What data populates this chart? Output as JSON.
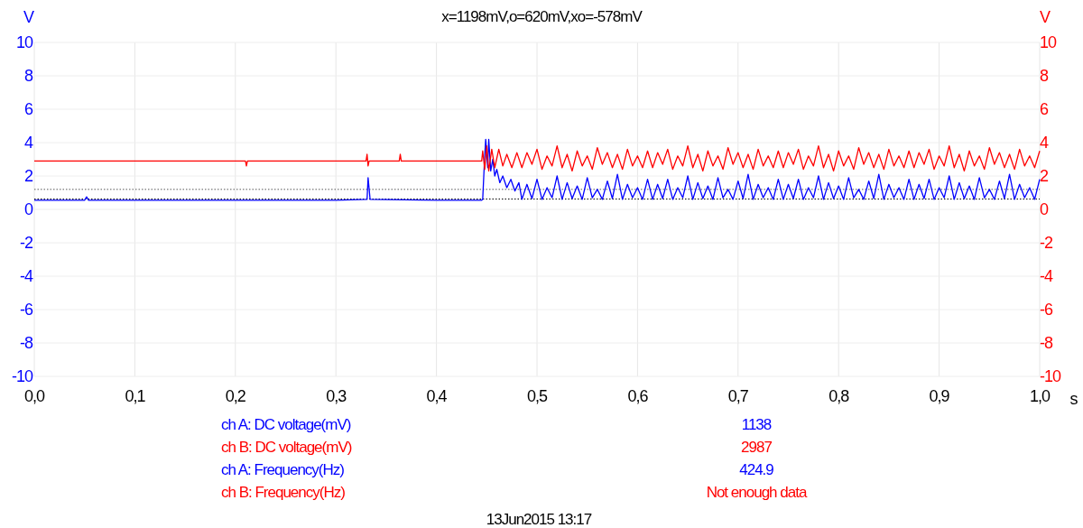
{
  "chart_data": {
    "type": "line",
    "title": "x=1198mV,o=620mV,xo=-578mV",
    "xlabel": "s",
    "ylabel": "V",
    "y2label": "V",
    "xlim": [
      0,
      1
    ],
    "xticks": [
      {
        "value": 0,
        "label": "0,0"
      },
      {
        "value": 0.1,
        "label": "0,1"
      },
      {
        "value": 0.2,
        "label": "0,2"
      },
      {
        "value": 0.3,
        "label": "0,3"
      },
      {
        "value": 0.4,
        "label": "0,4"
      },
      {
        "value": 0.5,
        "label": "0,5"
      },
      {
        "value": 0.6,
        "label": "0,6"
      },
      {
        "value": 0.7,
        "label": "0,7"
      },
      {
        "value": 0.8,
        "label": "0,8"
      },
      {
        "value": 0.9,
        "label": "0,9"
      },
      {
        "value": 1,
        "label": "1,0"
      }
    ],
    "ylim": [
      -10,
      10
    ],
    "yticks": [
      -10,
      -8,
      -6,
      -4,
      -2,
      0,
      2,
      4,
      6,
      8,
      10
    ],
    "y2lim": [
      -10,
      10
    ],
    "y2ticks": [
      -10,
      -8,
      -6,
      -4,
      -2,
      0,
      2,
      4,
      6,
      8,
      10
    ],
    "grid": true,
    "line_style": "solid",
    "marker": "none",
    "ref_lines": [
      {
        "axis": "y",
        "value": 1.198,
        "label": null,
        "color": "#555555",
        "line_style": "dotted"
      },
      {
        "axis": "y",
        "value": 0.62,
        "label": null,
        "color": "#000000",
        "line_style": "dotted"
      }
    ],
    "series": [
      {
        "color": "#0000ff",
        "x": [
          0,
          0.05,
          0.052,
          0.054,
          0.1,
          0.2,
          0.3,
          0.331,
          0.332,
          0.334,
          0.4,
          0.445,
          0.446,
          0.448,
          0.449,
          0.451,
          0.452,
          0.454,
          0.456,
          0.458,
          0.46,
          0.463,
          0.466,
          0.47,
          0.474,
          0.478,
          0.482,
          0.485,
          0.49,
          0.495,
          0.5,
          0.505,
          0.51,
          0.515,
          0.52,
          0.525,
          0.53,
          0.535,
          0.54,
          0.545,
          0.55,
          0.555,
          0.56,
          0.565,
          0.57,
          0.575,
          0.58,
          0.585,
          0.59,
          0.595,
          0.6,
          0.605,
          0.61,
          0.615,
          0.62,
          0.625,
          0.63,
          0.635,
          0.64,
          0.645,
          0.65,
          0.655,
          0.66,
          0.665,
          0.67,
          0.675,
          0.68,
          0.685,
          0.69,
          0.695,
          0.7,
          0.705,
          0.71,
          0.715,
          0.72,
          0.725,
          0.73,
          0.735,
          0.74,
          0.745,
          0.75,
          0.755,
          0.76,
          0.765,
          0.77,
          0.775,
          0.78,
          0.785,
          0.79,
          0.795,
          0.8,
          0.805,
          0.81,
          0.815,
          0.82,
          0.825,
          0.83,
          0.835,
          0.84,
          0.845,
          0.85,
          0.855,
          0.86,
          0.865,
          0.87,
          0.875,
          0.88,
          0.885,
          0.89,
          0.895,
          0.9,
          0.905,
          0.91,
          0.915,
          0.92,
          0.925,
          0.93,
          0.935,
          0.94,
          0.945,
          0.95,
          0.955,
          0.96,
          0.965,
          0.97,
          0.975,
          0.98,
          0.985,
          0.99,
          0.995,
          1.0
        ],
        "values": [
          0.55,
          0.55,
          0.75,
          0.55,
          0.55,
          0.55,
          0.55,
          0.6,
          1.9,
          0.6,
          0.55,
          0.55,
          0.6,
          3.2,
          4.2,
          2.5,
          4.2,
          2.3,
          3.0,
          2.0,
          2.4,
          1.6,
          2.0,
          1.3,
          1.8,
          1.1,
          1.6,
          0.6,
          1.5,
          0.65,
          1.8,
          0.6,
          1.3,
          0.7,
          2.0,
          0.6,
          1.6,
          0.65,
          1.4,
          0.6,
          1.9,
          0.7,
          1.2,
          0.6,
          1.7,
          0.65,
          2.1,
          0.6,
          1.5,
          0.7,
          1.3,
          0.6,
          1.8,
          0.6,
          1.5,
          0.65,
          1.8,
          0.6,
          1.3,
          0.7,
          2.0,
          0.6,
          1.6,
          0.65,
          1.4,
          0.6,
          1.9,
          0.7,
          1.2,
          0.6,
          1.7,
          0.65,
          2.1,
          0.6,
          1.5,
          0.7,
          1.3,
          0.6,
          1.8,
          0.6,
          1.5,
          0.65,
          1.8,
          0.6,
          1.3,
          0.7,
          2.0,
          0.6,
          1.6,
          0.65,
          1.4,
          0.6,
          1.9,
          0.7,
          1.2,
          0.6,
          1.7,
          0.65,
          2.1,
          0.6,
          1.5,
          0.7,
          1.3,
          0.6,
          1.8,
          0.6,
          1.5,
          0.65,
          1.8,
          0.6,
          1.3,
          0.7,
          2.0,
          0.6,
          1.6,
          0.65,
          1.4,
          0.6,
          1.9,
          0.7,
          1.2,
          0.6,
          1.7,
          0.65,
          2.1,
          0.6,
          1.5,
          0.7,
          1.3,
          0.6,
          1.8
        ]
      },
      {
        "color": "#ff0000",
        "axis": "y2",
        "x": [
          0,
          0.2,
          0.21,
          0.211,
          0.212,
          0.33,
          0.331,
          0.332,
          0.333,
          0.363,
          0.364,
          0.365,
          0.445,
          0.446,
          0.448,
          0.45,
          0.452,
          0.455,
          0.458,
          0.462,
          0.466,
          0.47,
          0.475,
          0.48,
          0.485,
          0.49,
          0.495,
          0.5,
          0.505,
          0.51,
          0.515,
          0.52,
          0.525,
          0.53,
          0.535,
          0.54,
          0.545,
          0.55,
          0.555,
          0.56,
          0.565,
          0.57,
          0.575,
          0.58,
          0.585,
          0.59,
          0.595,
          0.6,
          0.605,
          0.61,
          0.615,
          0.62,
          0.625,
          0.63,
          0.635,
          0.64,
          0.645,
          0.65,
          0.655,
          0.66,
          0.665,
          0.67,
          0.675,
          0.68,
          0.685,
          0.69,
          0.695,
          0.7,
          0.705,
          0.71,
          0.715,
          0.72,
          0.725,
          0.73,
          0.735,
          0.74,
          0.745,
          0.75,
          0.755,
          0.76,
          0.765,
          0.77,
          0.775,
          0.78,
          0.785,
          0.79,
          0.795,
          0.8,
          0.805,
          0.81,
          0.815,
          0.82,
          0.825,
          0.83,
          0.835,
          0.84,
          0.845,
          0.85,
          0.855,
          0.86,
          0.865,
          0.87,
          0.875,
          0.88,
          0.885,
          0.89,
          0.895,
          0.9,
          0.905,
          0.91,
          0.915,
          0.92,
          0.925,
          0.93,
          0.935,
          0.94,
          0.945,
          0.95,
          0.955,
          0.96,
          0.965,
          0.97,
          0.975,
          0.98,
          0.985,
          0.99,
          0.995,
          1.0
        ],
        "values": [
          2.9,
          2.9,
          2.9,
          2.6,
          2.9,
          2.9,
          3.3,
          2.6,
          2.9,
          2.9,
          3.3,
          2.9,
          2.9,
          3.5,
          2.4,
          3.8,
          2.3,
          3.6,
          2.5,
          3.6,
          2.6,
          3.3,
          2.5,
          3.4,
          2.5,
          3.4,
          2.7,
          3.6,
          2.4,
          3.2,
          2.6,
          3.8,
          2.5,
          3.3,
          2.3,
          3.5,
          2.6,
          3.2,
          2.4,
          3.7,
          2.7,
          3.4,
          2.5,
          3.3,
          2.4,
          3.6,
          2.6,
          3.2,
          2.5,
          3.5,
          2.5,
          3.4,
          2.7,
          3.6,
          2.4,
          3.2,
          2.6,
          3.8,
          2.5,
          3.3,
          2.3,
          3.5,
          2.6,
          3.2,
          2.4,
          3.7,
          2.7,
          3.4,
          2.5,
          3.3,
          2.4,
          3.6,
          2.6,
          3.2,
          2.5,
          3.5,
          2.5,
          3.4,
          2.7,
          3.6,
          2.4,
          3.2,
          2.6,
          3.8,
          2.5,
          3.3,
          2.3,
          3.5,
          2.6,
          3.2,
          2.4,
          3.7,
          2.7,
          3.4,
          2.5,
          3.3,
          2.4,
          3.6,
          2.6,
          3.2,
          2.5,
          3.5,
          2.5,
          3.4,
          2.7,
          3.6,
          2.4,
          3.2,
          2.6,
          3.8,
          2.5,
          3.3,
          2.3,
          3.5,
          2.6,
          3.2,
          2.4,
          3.7,
          2.7,
          3.4,
          2.5,
          3.3,
          2.4,
          3.6,
          2.6,
          3.2,
          2.5,
          3.5
        ]
      }
    ],
    "annotations": [
      "ch A: DC voltage(mV)",
      "1138",
      "ch B: DC voltage(mV)",
      "2987",
      "ch A: Frequency(Hz)",
      "424.9",
      "ch B: Frequency(Hz)",
      "Not enough data",
      "13Jun2015  13:17"
    ]
  }
}
